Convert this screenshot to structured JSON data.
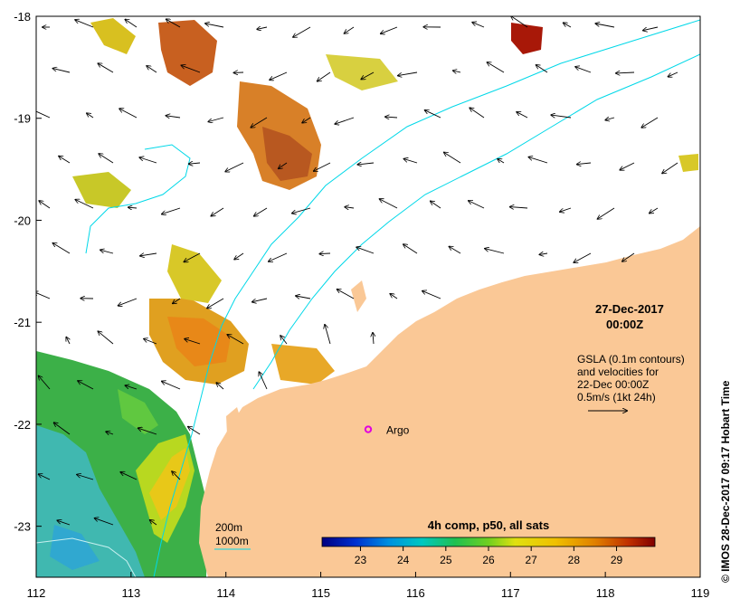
{
  "map": {
    "lon_range": [
      112,
      119
    ],
    "lat_range": [
      -23.5,
      -18
    ],
    "x_ticks": [
      "112",
      "113",
      "114",
      "115",
      "116",
      "117",
      "118",
      "119"
    ],
    "y_ticks": [
      "-18",
      "-19",
      "-20",
      "-21",
      "-22",
      "-23"
    ],
    "land_color": "#fac896",
    "contour_color": "#00d8e8"
  },
  "date_label": {
    "line1": "27-Dec-2017",
    "line2": "00:00Z"
  },
  "gsla_note": {
    "line1": "GSLA (0.1m contours)",
    "line2": "and velocities for",
    "line3": "22-Dec 00:00Z",
    "line4": "0.5m/s (1kt 24h)"
  },
  "argo": {
    "label": "Argo",
    "lon": 115.5,
    "lat": -22.05,
    "color": "#e000e0"
  },
  "depth_legend": {
    "label_200": "200m",
    "label_1000": "1000m"
  },
  "colorbar": {
    "title": "4h comp, p50, all sats",
    "ticks": [
      "23",
      "24",
      "25",
      "26",
      "27",
      "28",
      "29"
    ]
  },
  "side_caption": "© IMOS 28-Dec-2017 09:17 Hobart Time"
}
